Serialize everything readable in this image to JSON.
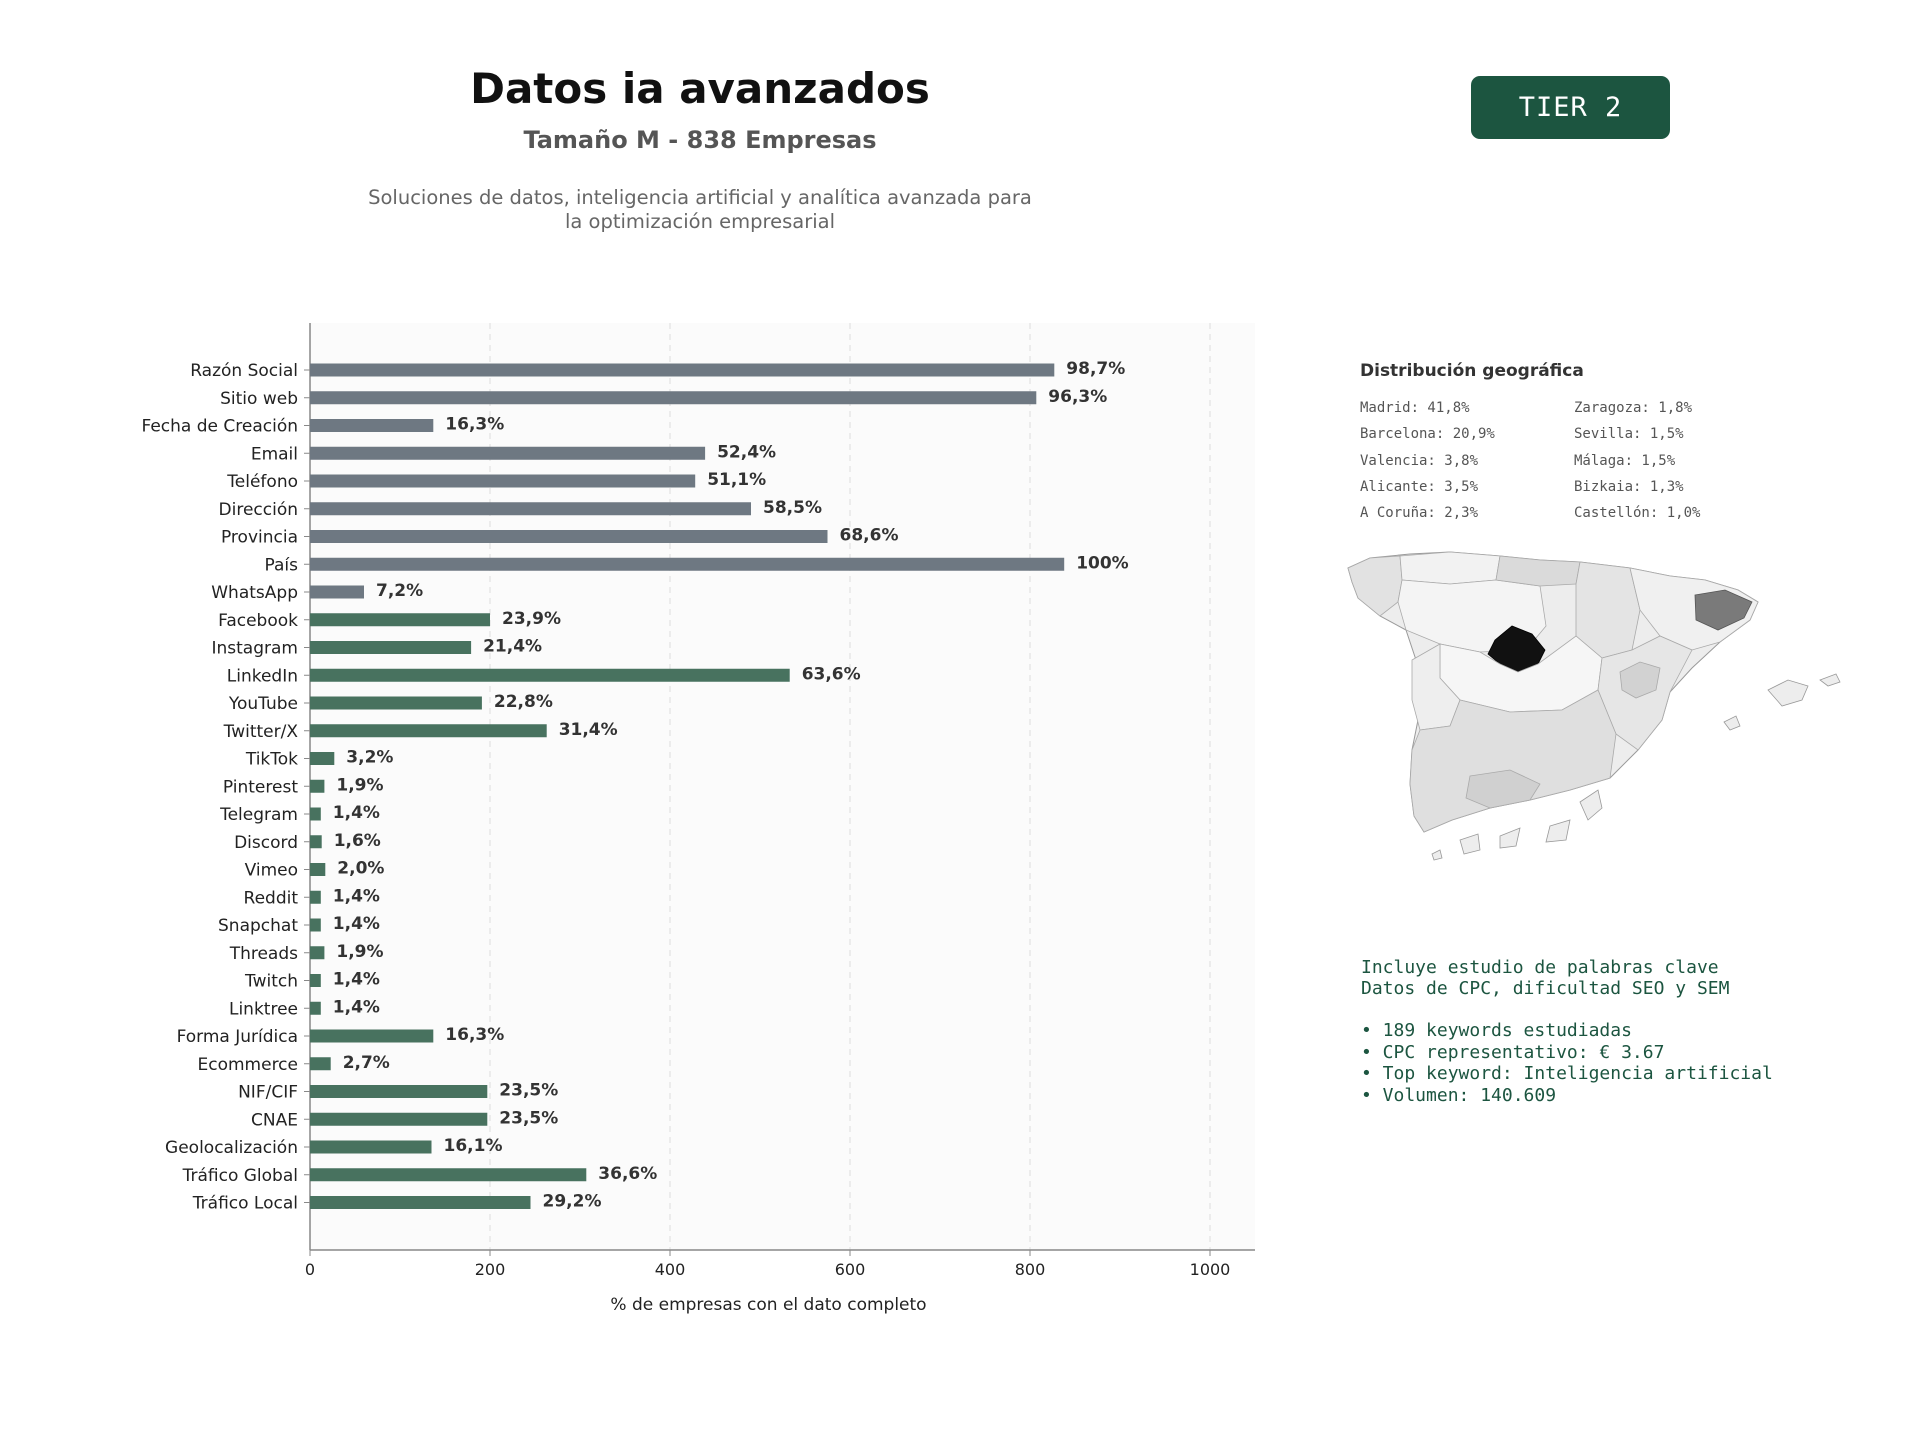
{
  "header": {
    "title": "Datos ia avanzados",
    "subtitle": "Tamaño M - 838 Empresas",
    "description_line1": "Soluciones de datos, inteligencia artificial y analítica avanzada para",
    "description_line2": "la optimización empresarial",
    "badge": "TIER 2"
  },
  "colors": {
    "basic_bar": "#6e7882",
    "social_bar": "#48725f",
    "accent": "#1c5540",
    "madrid": "#111111",
    "barcelona": "#7a7a7a"
  },
  "chart_data": {
    "type": "bar",
    "orientation": "horizontal",
    "xlabel": "% de empresas con el dato completo",
    "xlim": [
      0,
      1050
    ],
    "xticks": [
      0,
      200,
      400,
      600,
      800,
      1000
    ],
    "grid": "vertical dashed",
    "categories": [
      "Razón Social",
      "Sitio web",
      "Fecha de Creación",
      "Email",
      "Teléfono",
      "Dirección",
      "Provincia",
      "País",
      "WhatsApp",
      "Facebook",
      "Instagram",
      "LinkedIn",
      "YouTube",
      "Twitter/X",
      "TikTok",
      "Pinterest",
      "Telegram",
      "Discord",
      "Vimeo",
      "Reddit",
      "Snapchat",
      "Threads",
      "Twitch",
      "Linktree",
      "Forma Jurídica",
      "Ecommerce",
      "NIF/CIF",
      "CNAE",
      "Geolocalización",
      "Tráfico Global",
      "Tráfico Local"
    ],
    "values": [
      827,
      807,
      137,
      439,
      428,
      490,
      575,
      838,
      60,
      200,
      179,
      533,
      191,
      263,
      27,
      16,
      12,
      13,
      17,
      12,
      12,
      16,
      12,
      12,
      137,
      23,
      197,
      197,
      135,
      307,
      245
    ],
    "labels": [
      "98,7%",
      "96,3%",
      "16,3%",
      "52,4%",
      "51,1%",
      "58,5%",
      "68,6%",
      "100%",
      "7,2%",
      "23,9%",
      "21,4%",
      "63,6%",
      "22,8%",
      "31,4%",
      "3,2%",
      "1,9%",
      "1,4%",
      "1,6%",
      "2,0%",
      "1,4%",
      "1,4%",
      "1,9%",
      "1,4%",
      "1,4%",
      "16,3%",
      "2,7%",
      "23,5%",
      "23,5%",
      "16,1%",
      "36,6%",
      "29,2%"
    ],
    "groups": [
      "basic",
      "basic",
      "basic",
      "basic",
      "basic",
      "basic",
      "basic",
      "basic",
      "basic",
      "social",
      "social",
      "social",
      "social",
      "social",
      "social",
      "social",
      "social",
      "social",
      "social",
      "social",
      "social",
      "social",
      "social",
      "social",
      "social",
      "social",
      "social",
      "social",
      "social",
      "social",
      "social"
    ]
  },
  "geo": {
    "title": "Distribución geográfica",
    "col1": [
      "Madrid: 41,8%",
      "Barcelona: 20,9%",
      "Valencia: 3,8%",
      "Alicante: 3,5%",
      "A Coruña: 2,3%"
    ],
    "col2": [
      "Zaragoza: 1,8%",
      "Sevilla: 1,5%",
      "Málaga: 1,5%",
      "Bizkaia: 1,3%",
      "Castellón: 1,0%"
    ]
  },
  "keywords": {
    "line1": "Incluye estudio de palabras clave",
    "line2": "Datos de CPC, dificultad SEO y SEM",
    "bullets": [
      "• 189 keywords estudiadas",
      "• CPC representativo: € 3.67",
      "• Top keyword: Inteligencia artificial",
      "• Volumen: 140.609"
    ]
  }
}
